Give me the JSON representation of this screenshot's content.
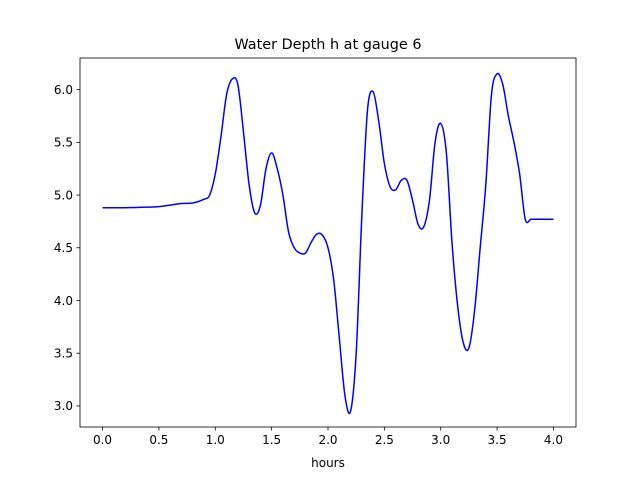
{
  "chart_data": {
    "type": "line",
    "title": "Water Depth h at gauge 6",
    "xlabel": "hours",
    "ylabel": "",
    "xlim": [
      -0.2,
      4.2
    ],
    "ylim": [
      2.8,
      6.3
    ],
    "xticks": [
      0.0,
      0.5,
      1.0,
      1.5,
      2.0,
      2.5,
      3.0,
      3.5,
      4.0
    ],
    "xtick_labels": [
      "0.0",
      "0.5",
      "1.0",
      "1.5",
      "2.0",
      "2.5",
      "3.0",
      "3.5",
      "4.0"
    ],
    "yticks": [
      3.0,
      3.5,
      4.0,
      4.5,
      5.0,
      5.5,
      6.0
    ],
    "ytick_labels": [
      "3.0",
      "3.5",
      "4.0",
      "4.5",
      "5.0",
      "5.5",
      "6.0"
    ],
    "grid": false,
    "series": [
      {
        "color": "#0000ff",
        "x": [
          0.0,
          0.2,
          0.4,
          0.5,
          0.6,
          0.7,
          0.8,
          0.9,
          0.95,
          1.0,
          1.05,
          1.1,
          1.15,
          1.2,
          1.25,
          1.3,
          1.35,
          1.4,
          1.45,
          1.5,
          1.55,
          1.6,
          1.65,
          1.7,
          1.75,
          1.8,
          1.85,
          1.9,
          1.95,
          2.0,
          2.05,
          2.1,
          2.15,
          2.2,
          2.25,
          2.3,
          2.35,
          2.4,
          2.45,
          2.5,
          2.55,
          2.6,
          2.65,
          2.7,
          2.75,
          2.8,
          2.85,
          2.9,
          2.95,
          3.0,
          3.05,
          3.1,
          3.15,
          3.2,
          3.25,
          3.3,
          3.35,
          3.4,
          3.45,
          3.5,
          3.55,
          3.6,
          3.65,
          3.7,
          3.75,
          3.8,
          3.85,
          3.9,
          3.95,
          4.0
        ],
        "y": [
          4.88,
          4.88,
          4.885,
          4.89,
          4.905,
          4.92,
          4.925,
          4.96,
          5.0,
          5.2,
          5.55,
          5.95,
          6.1,
          6.05,
          5.6,
          5.1,
          4.83,
          4.9,
          5.25,
          5.4,
          5.25,
          5.0,
          4.65,
          4.5,
          4.45,
          4.45,
          4.55,
          4.63,
          4.62,
          4.5,
          4.2,
          3.65,
          3.1,
          2.95,
          3.5,
          4.8,
          5.8,
          5.98,
          5.7,
          5.3,
          5.08,
          5.05,
          5.14,
          5.14,
          4.95,
          4.72,
          4.7,
          4.95,
          5.5,
          5.68,
          5.4,
          4.55,
          3.95,
          3.6,
          3.55,
          3.9,
          4.5,
          5.1,
          5.95,
          6.15,
          6.05,
          5.75,
          5.5,
          5.2,
          4.77,
          4.77,
          4.77,
          4.77,
          4.77,
          4.77
        ]
      }
    ]
  }
}
